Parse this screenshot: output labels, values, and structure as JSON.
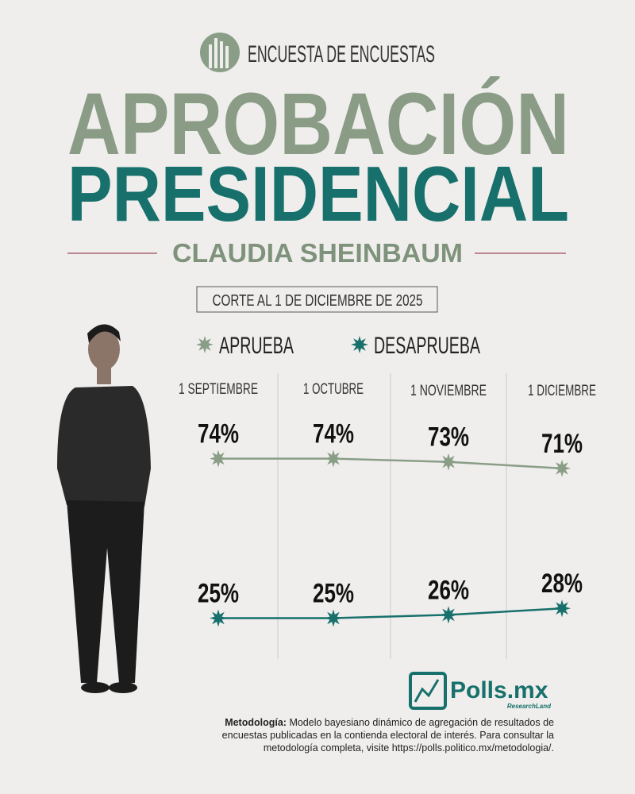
{
  "header": {
    "brand": "ENCUESTA DE ENCUESTAS",
    "title_line1": "APROBACIÓN",
    "title_line2": "PRESIDENCIAL",
    "subtitle": "CLAUDIA SHEINBAUM",
    "cutoff": "CORTE AL 1 DE DICIEMBRE DE 2025"
  },
  "chart_data": {
    "type": "line",
    "categories": [
      "1 SEPTIEMBRE",
      "1 OCTUBRE",
      "1 NOVIEMBRE",
      "1 DICIEMBRE"
    ],
    "series": [
      {
        "name": "APRUEBA",
        "color": "#8a9e87",
        "values": [
          74,
          74,
          73,
          71
        ],
        "value_labels": [
          "74%",
          "74%",
          "73%",
          "71%"
        ]
      },
      {
        "name": "DESAPRUEBA",
        "color": "#17706c",
        "values": [
          25,
          25,
          26,
          28
        ],
        "value_labels": [
          "25%",
          "25%",
          "26%",
          "28%"
        ]
      }
    ]
  },
  "footer": {
    "logo": "Polls.mx",
    "logo_sub": "ResearchLand",
    "methodology_label": "Metodología:",
    "methodology_text": "Modelo bayesiano dinámico de agregación de resultados de encuestas publicadas en la contienda electoral de interés. Para consultar la metodología completa, visite https://polls.politico.mx/metodologia/."
  }
}
